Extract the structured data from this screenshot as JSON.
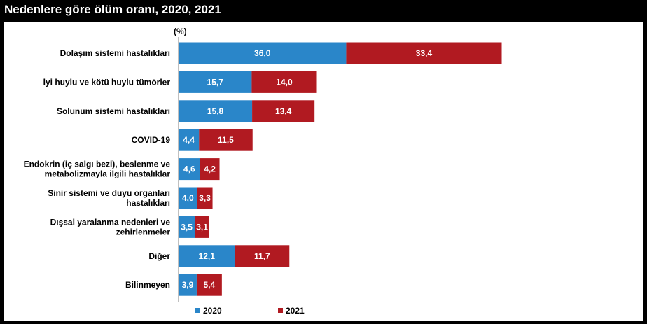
{
  "title": "Nedenlere göre ölüm oranı, 2020, 2021",
  "colors": {
    "background": "#000000",
    "panel": "#ffffff",
    "series_2020": "#2a86c9",
    "series_2021": "#b11a21"
  },
  "chart_data": {
    "type": "bar",
    "orientation": "horizontal",
    "stacked": true,
    "unit": "(%)",
    "categories": [
      [
        "Dolaşım sistemi hastalıkları"
      ],
      [
        "İyi huylu ve kötü huylu tümörler"
      ],
      [
        "Solunum sistemi hastalıkları"
      ],
      [
        "COVID-19"
      ],
      [
        "Endokrin (iç salgı bezi), beslenme ve",
        "metabolizmayla ilgili hastalıklar"
      ],
      [
        "Sinir sistemi ve duyu organları",
        "hastalıkları"
      ],
      [
        "Dışsal yaralanma nedenleri ve",
        "zehirlenmeler"
      ],
      [
        "Diğer"
      ],
      [
        "Bilinmeyen"
      ]
    ],
    "series": [
      {
        "name": "2020",
        "color": "#2a86c9",
        "values": [
          36.0,
          15.7,
          15.8,
          4.4,
          4.6,
          4.0,
          3.5,
          12.1,
          3.9
        ],
        "labels": [
          "36,0",
          "15,7",
          "15,8",
          "4,4",
          "4,6",
          "4,0",
          "3,5",
          "12,1",
          "3,9"
        ]
      },
      {
        "name": "2021",
        "color": "#b11a21",
        "values": [
          33.4,
          14.0,
          13.4,
          11.5,
          4.2,
          3.3,
          3.1,
          11.7,
          5.4
        ],
        "labels": [
          "33,4",
          "14,0",
          "13,4",
          "11,5",
          "4,2",
          "3,3",
          "3,1",
          "11,7",
          "5,4"
        ]
      }
    ],
    "legend": {
      "position": "bottom"
    },
    "grid": false
  }
}
